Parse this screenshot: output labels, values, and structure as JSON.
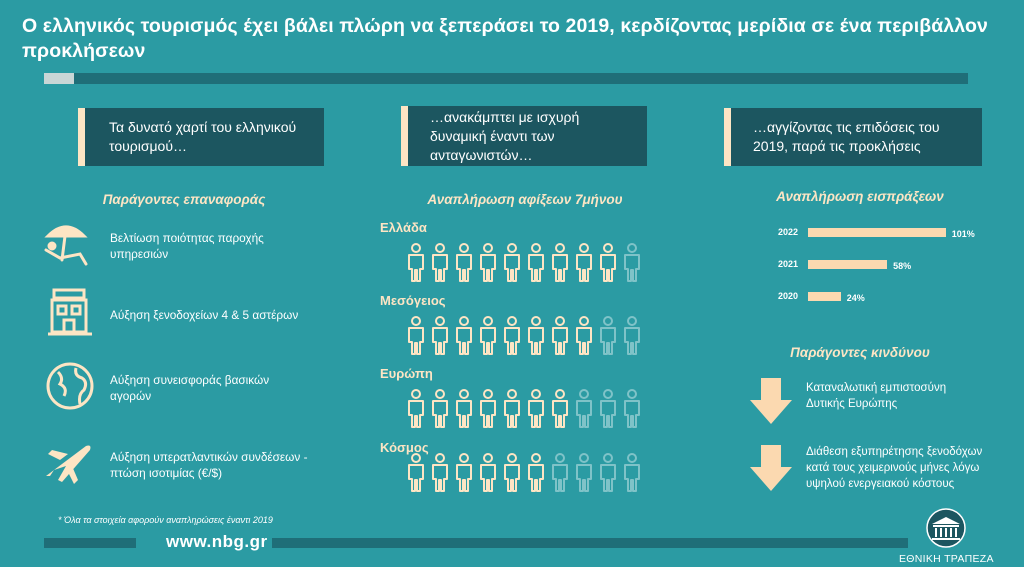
{
  "title": "Ο ελληνικός τουρισμός έχει βάλει πλώρη να ξεπεράσει το 2019, κερδίζοντας μερίδια σε ένα περιβάλλον προκλήσεων",
  "col1": {
    "header": "Τα δυνατό χαρτί του ελληνικού τουρισμού…",
    "subtitle": "Παράγοντες επαναφοράς",
    "facts": [
      {
        "icon": "beach-chair-icon",
        "text": "Βελτίωση ποιότητας παροχής υπηρεσιών"
      },
      {
        "icon": "hotel-icon",
        "text": "Αύξηση ξενοδοχείων 4 & 5 αστέρων"
      },
      {
        "icon": "globe-icon",
        "text": "Αύξηση συνεισφοράς βασικών αγορών"
      },
      {
        "icon": "airplane-icon",
        "text": "Αύξηση υπερατλαντικών συνδέσεων - πτώση ισοτιμίας (€/$)"
      }
    ]
  },
  "col2": {
    "header": "…ανακάμπτει με ισχυρή δυναμική έναντι των ανταγωνιστών…",
    "subtitle": "Αναπλήρωση αφίξεων 7μήνου",
    "regions": [
      {
        "name": "Ελλάδα",
        "filled": 9
      },
      {
        "name": "Μεσόγειος",
        "filled": 8
      },
      {
        "name": "Ευρώπη",
        "filled": 7
      },
      {
        "name": "Κόσμος",
        "filled": 6
      }
    ]
  },
  "col3": {
    "header": "…αγγίζοντας τις επιδόσεις του 2019, παρά τις προκλήσεις",
    "subtitle": "Αναπλήρωση εισπράξεων",
    "risk_title": "Παράγοντες κινδύνου",
    "risks": [
      {
        "icon": "down-arrow-icon",
        "text": "Καταναλωτική εμπιστοσύνη Δυτικής Ευρώπης"
      },
      {
        "icon": "down-arrow-icon",
        "text": "Διάθεση εξυπηρέτησης ξενοδόχων κατά τους χειμερινούς μήνες λόγω υψηλού ενεργειακού κόστους"
      }
    ]
  },
  "chart_data": {
    "type": "bar",
    "orientation": "horizontal",
    "categories": [
      "2022",
      "2021",
      "2020"
    ],
    "values": [
      101,
      58,
      24
    ],
    "labels": [
      "101%",
      "58%",
      "24%"
    ],
    "title": "Αναπλήρωση εισπράξεων"
  },
  "footnote": "* Όλα τα στοιχεία αφορούν αναπληρώσεις έναντι 2019",
  "website": "www.nbg.gr",
  "brand": "ΕΘΝΙΚΗ ΤΡΑΠΕΖΑ",
  "colors": {
    "background": "#2b9ba3",
    "dark": "#1c5660",
    "accent": "#fde5c4",
    "faded": "#7fc3c8"
  }
}
